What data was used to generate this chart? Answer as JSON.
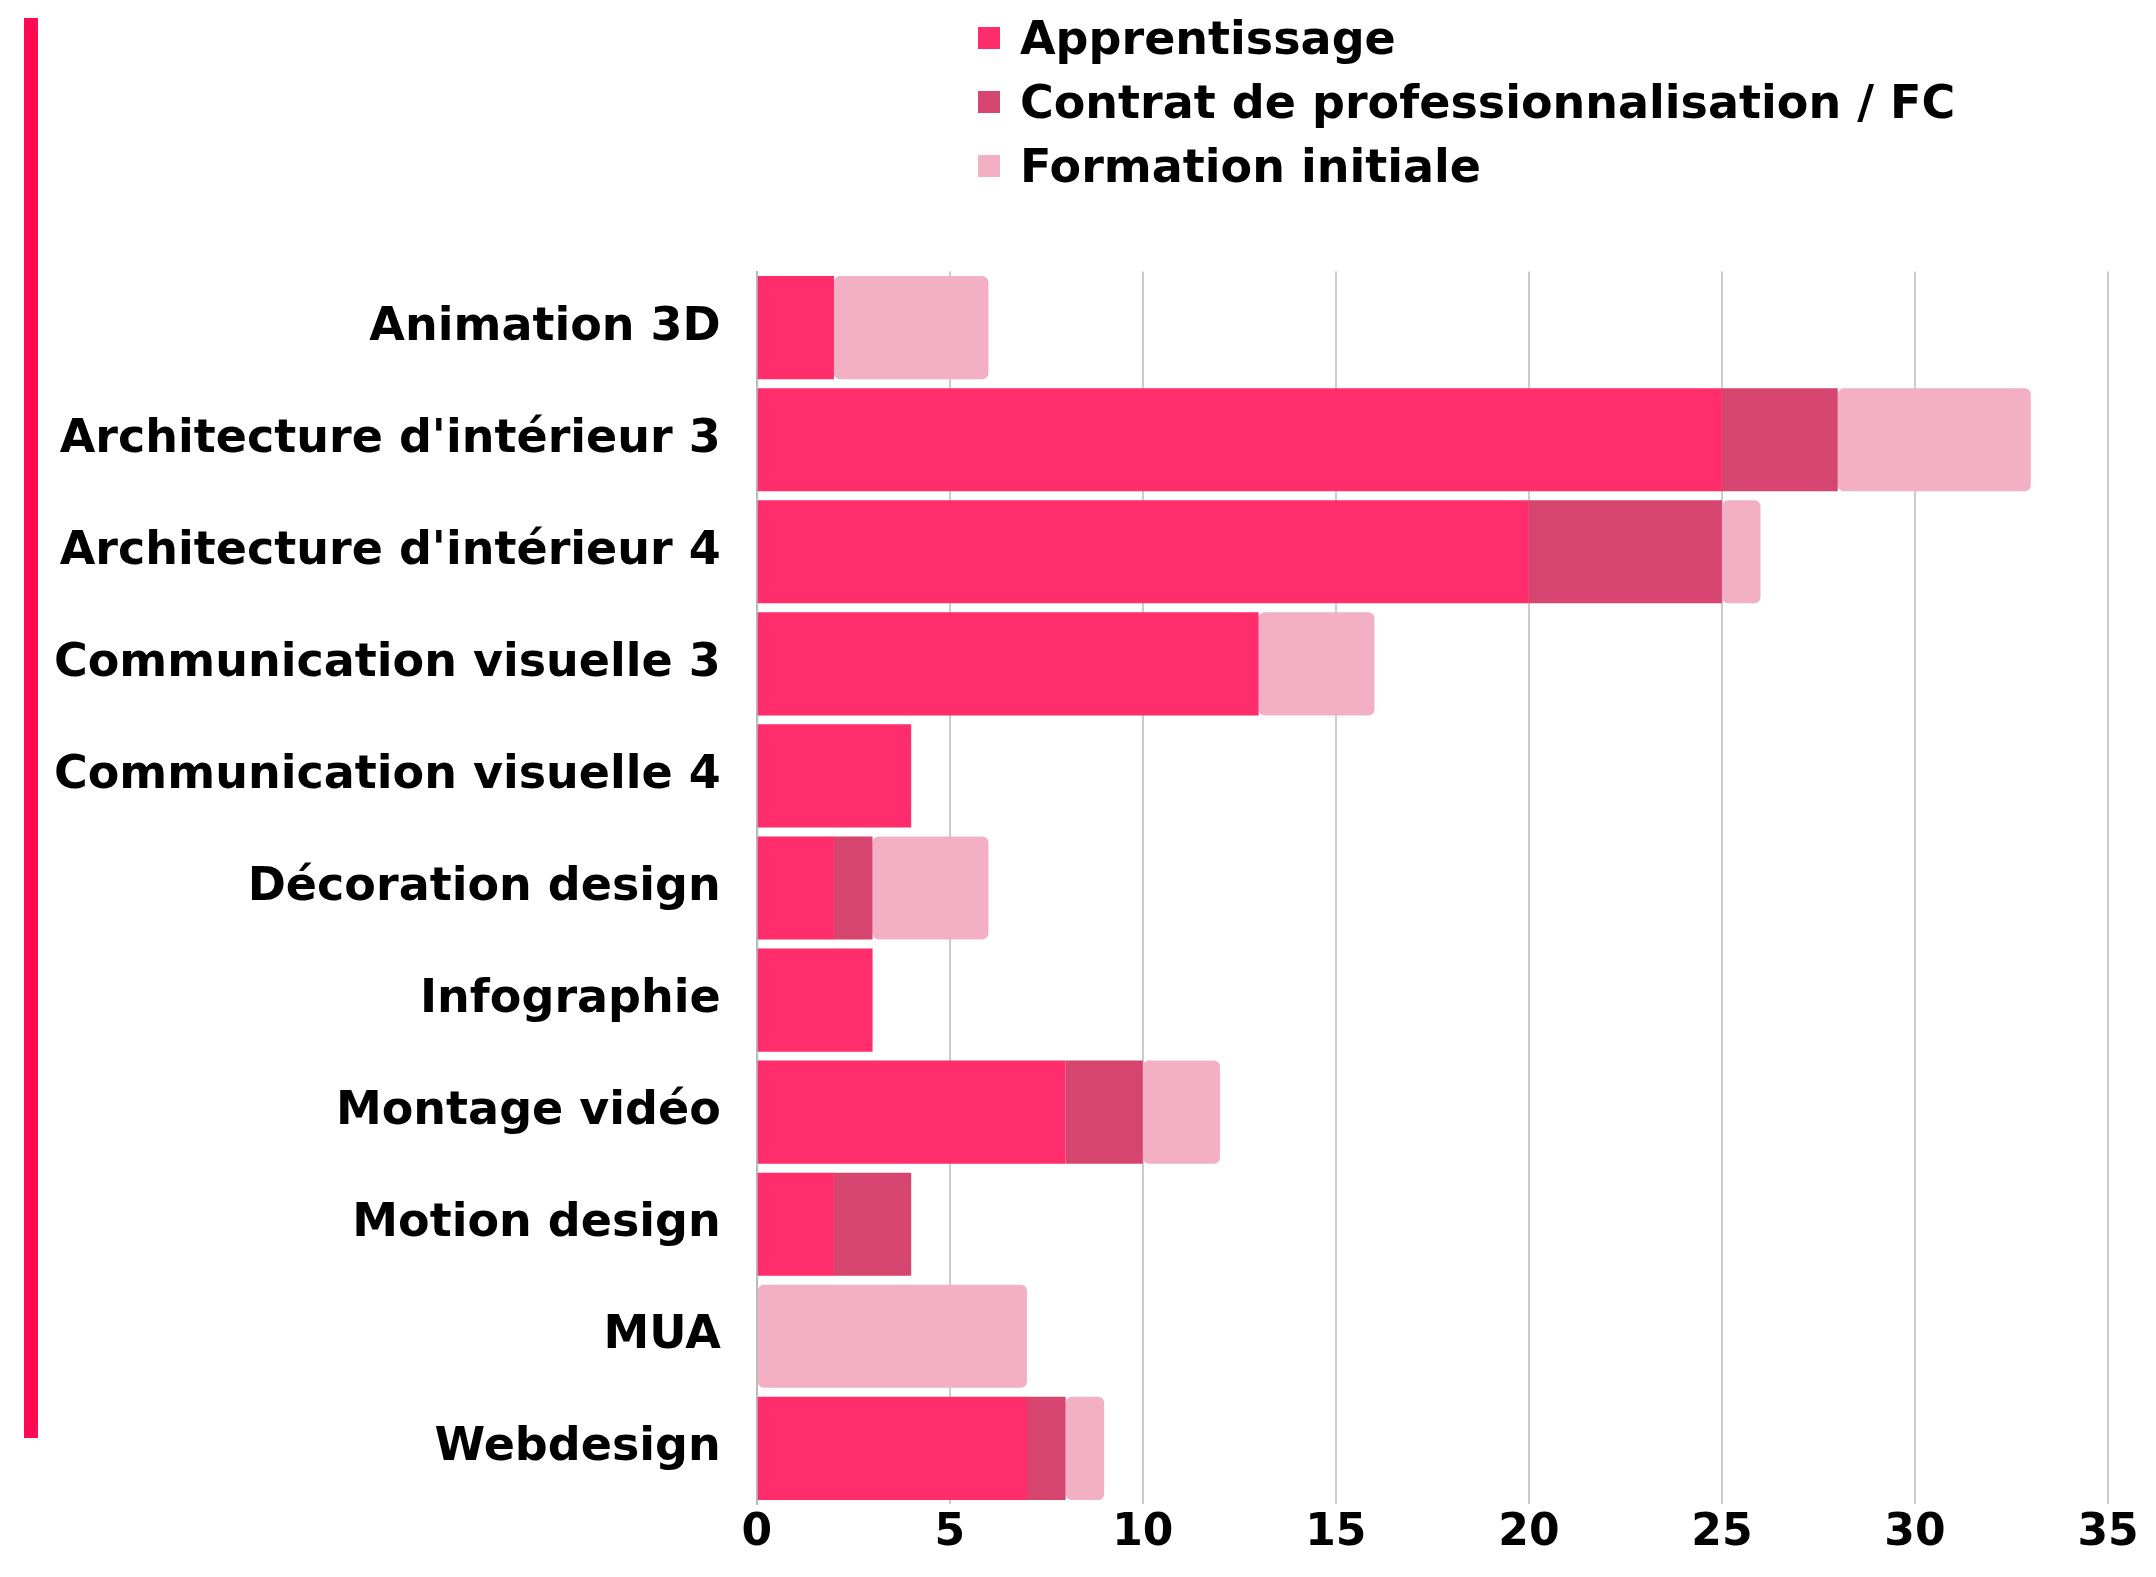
{
  "chart_data": {
    "type": "bar",
    "orientation": "horizontal",
    "stacked": true,
    "categories": [
      "Animation 3D",
      "Architecture d'intérieur 3",
      "Architecture d'intérieur 4",
      "Communication visuelle 3",
      "Communication visuelle 4",
      "Décoration design",
      "Infographie",
      "Montage vidéo",
      "Motion design",
      "MUA",
      "Webdesign"
    ],
    "series": [
      {
        "name": "Apprentissage",
        "color": "#ff2d6b",
        "values": [
          2,
          25,
          20,
          13,
          4,
          2,
          3,
          8,
          2,
          null,
          7
        ]
      },
      {
        "name": "Contrat de professionnalisation / FC",
        "color": "#d6456f",
        "values": [
          null,
          3,
          5,
          null,
          null,
          1,
          null,
          2,
          2,
          null,
          1
        ]
      },
      {
        "name": "Formation initiale",
        "color": "#f3afc3",
        "values": [
          4,
          5,
          1,
          3,
          null,
          3,
          null,
          2,
          null,
          7,
          1
        ]
      }
    ],
    "xlim": [
      0,
      35
    ],
    "xticks": [
      0,
      5,
      10,
      15,
      20,
      25,
      30,
      35
    ],
    "grid": "x",
    "legend": "top"
  }
}
